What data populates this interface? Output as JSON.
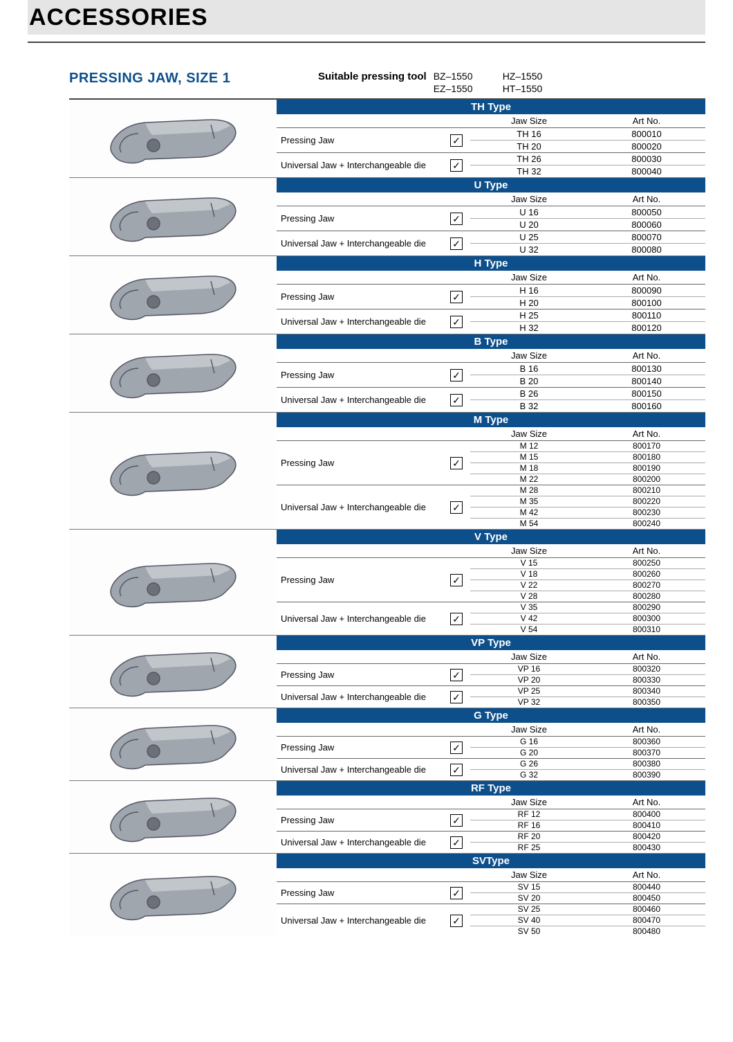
{
  "page": {
    "title": "ACCESSORIES",
    "section_title": "PRESSING JAW, SIZE 1",
    "suitable_label": "Suitable pressing tool",
    "tool_codes_col1": [
      "BZ–1550",
      "EZ–1550"
    ],
    "tool_codes_col2": [
      "HZ–1550",
      "HT–1550"
    ],
    "column_headers": {
      "jaw_size": "Jaw Size",
      "art_no": "Art No."
    },
    "group_labels": {
      "pressing": "Pressing Jaw",
      "universal": "Universal Jaw + Interchangeable die"
    },
    "colors": {
      "header_bg": "#e5e5e5",
      "accent": "#0d4f8b",
      "text": "#000000",
      "jaw_body": "#9fa6ad",
      "jaw_highlight": "#c1c6cb",
      "jaw_outline": "#556066"
    }
  },
  "types": [
    {
      "title": "TH Type",
      "compact": false,
      "pressing": [
        {
          "size": "TH 16",
          "art": "800010"
        },
        {
          "size": "TH 20",
          "art": "800020"
        }
      ],
      "universal": [
        {
          "size": "TH 26",
          "art": "800030"
        },
        {
          "size": "TH 32",
          "art": "800040"
        }
      ]
    },
    {
      "title": "U Type",
      "compact": false,
      "pressing": [
        {
          "size": "U 16",
          "art": "800050"
        },
        {
          "size": "U 20",
          "art": "800060"
        }
      ],
      "universal": [
        {
          "size": "U 25",
          "art": "800070"
        },
        {
          "size": "U 32",
          "art": "800080"
        }
      ]
    },
    {
      "title": "H Type",
      "compact": false,
      "pressing": [
        {
          "size": "H 16",
          "art": "800090"
        },
        {
          "size": "H 20",
          "art": "800100"
        }
      ],
      "universal": [
        {
          "size": "H 25",
          "art": "800110"
        },
        {
          "size": "H 32",
          "art": "800120"
        }
      ]
    },
    {
      "title": "B Type",
      "compact": false,
      "pressing": [
        {
          "size": "B 16",
          "art": "800130"
        },
        {
          "size": "B 20",
          "art": "800140"
        }
      ],
      "universal": [
        {
          "size": "B 26",
          "art": "800150"
        },
        {
          "size": "B 32",
          "art": "800160"
        }
      ]
    },
    {
      "title": "M Type",
      "compact": true,
      "pressing": [
        {
          "size": "M 12",
          "art": "800170"
        },
        {
          "size": "M 15",
          "art": "800180"
        },
        {
          "size": "M 18",
          "art": "800190"
        },
        {
          "size": "M 22",
          "art": "800200"
        }
      ],
      "universal": [
        {
          "size": "M 28",
          "art": "800210"
        },
        {
          "size": "M 35",
          "art": "800220"
        },
        {
          "size": "M 42",
          "art": "800230"
        },
        {
          "size": "M 54",
          "art": "800240"
        }
      ]
    },
    {
      "title": "V Type",
      "compact": true,
      "pressing": [
        {
          "size": "V 15",
          "art": "800250"
        },
        {
          "size": "V 18",
          "art": "800260"
        },
        {
          "size": "V 22",
          "art": "800270"
        },
        {
          "size": "V 28",
          "art": "800280"
        }
      ],
      "universal": [
        {
          "size": "V 35",
          "art": "800290"
        },
        {
          "size": "V 42",
          "art": "800300"
        },
        {
          "size": "V 54",
          "art": "800310"
        }
      ]
    },
    {
      "title": "VP Type",
      "compact": true,
      "pressing": [
        {
          "size": "VP 16",
          "art": "800320"
        },
        {
          "size": "VP 20",
          "art": "800330"
        }
      ],
      "universal": [
        {
          "size": "VP 25",
          "art": "800340"
        },
        {
          "size": "VP 32",
          "art": "800350"
        }
      ]
    },
    {
      "title": "G Type",
      "compact": true,
      "pressing": [
        {
          "size": "G 16",
          "art": "800360"
        },
        {
          "size": "G 20",
          "art": "800370"
        }
      ],
      "universal": [
        {
          "size": "G 26",
          "art": "800380"
        },
        {
          "size": "G 32",
          "art": "800390"
        }
      ]
    },
    {
      "title": "RF Type",
      "compact": true,
      "pressing": [
        {
          "size": "RF 12",
          "art": "800400"
        },
        {
          "size": "RF 16",
          "art": "800410"
        }
      ],
      "universal": [
        {
          "size": "RF 20",
          "art": "800420"
        },
        {
          "size": "RF 25",
          "art": "800430"
        }
      ]
    },
    {
      "title": "SVType",
      "compact": true,
      "pressing": [
        {
          "size": "SV 15",
          "art": "800440"
        },
        {
          "size": "SV 20",
          "art": "800450"
        }
      ],
      "universal": [
        {
          "size": "SV 25",
          "art": "800460"
        },
        {
          "size": "SV 40",
          "art": "800470"
        },
        {
          "size": "SV 50",
          "art": "800480"
        }
      ]
    }
  ]
}
